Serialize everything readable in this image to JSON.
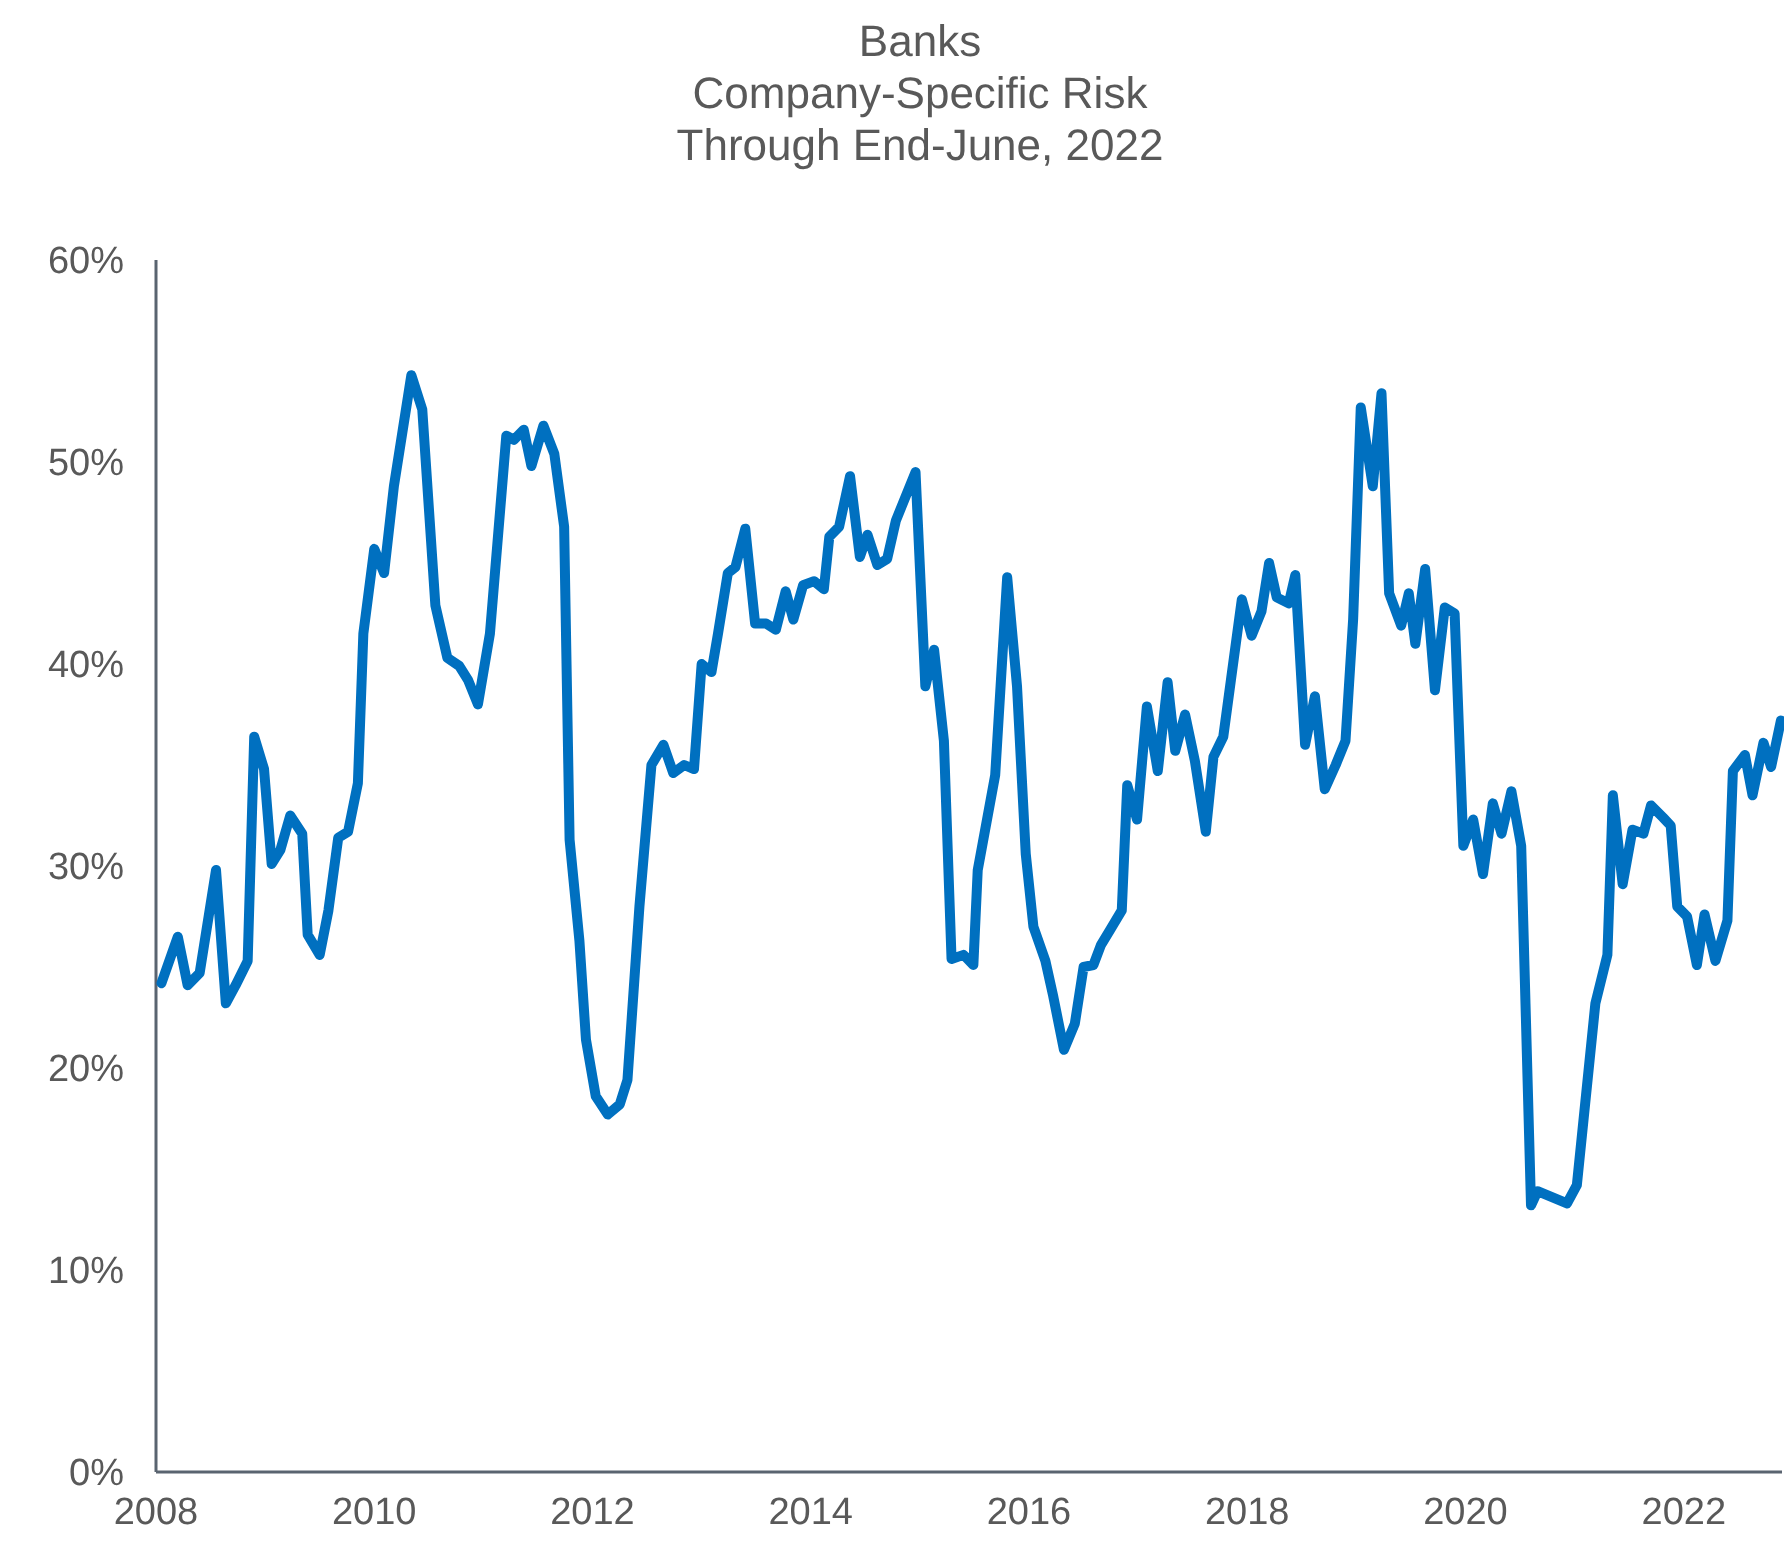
{
  "chart_data": {
    "type": "line",
    "title": "Banks\nCompany-Specific Risk\nThrough End-June, 2022",
    "xlim": [
      2008,
      2022.9
    ],
    "xticks": [
      2008,
      2010,
      2012,
      2014,
      2016,
      2018,
      2020,
      2022
    ],
    "ylim": [
      0,
      60
    ],
    "yticks": [
      {
        "value": 0,
        "label": "0%"
      },
      {
        "value": 10,
        "label": "10%"
      },
      {
        "value": 20,
        "label": "20%"
      },
      {
        "value": 30,
        "label": "30%"
      },
      {
        "value": 40,
        "label": "40%"
      },
      {
        "value": 50,
        "label": "50%"
      },
      {
        "value": 60,
        "label": "60%"
      }
    ],
    "grid": false,
    "marker": "none",
    "line_style": "solid",
    "series": [
      {
        "color": "#0070c0",
        "x": [
          2008.05,
          2008.2,
          2008.29,
          2008.4,
          2008.55,
          2008.64,
          2008.73,
          2008.84,
          2008.9,
          2008.99,
          2009.06,
          2009.14,
          2009.23,
          2009.34,
          2009.39,
          2009.5,
          2009.58,
          2009.67,
          2009.76,
          2009.85,
          2009.9,
          2010.0,
          2010.09,
          2010.18,
          2010.34,
          2010.44,
          2010.56,
          2010.67,
          2010.78,
          2010.86,
          2010.95,
          2011.06,
          2011.21,
          2011.28,
          2011.37,
          2011.44,
          2011.55,
          2011.65,
          2011.74,
          2011.79,
          2011.88,
          2011.94,
          2012.03,
          2012.14,
          2012.25,
          2012.32,
          2012.43,
          2012.54,
          2012.65,
          2012.74,
          2012.84,
          2012.93,
          2013.0,
          2013.09,
          2013.15,
          2013.24,
          2013.31,
          2013.4,
          2013.49,
          2013.59,
          2013.68,
          2013.77,
          2013.84,
          2013.93,
          2014.03,
          2014.12,
          2014.17,
          2014.26,
          2014.36,
          2014.45,
          2014.52,
          2014.61,
          2014.7,
          2014.78,
          2014.96,
          2015.05,
          2015.13,
          2015.22,
          2015.29,
          2015.4,
          2015.49,
          2015.53,
          2015.69,
          2015.8,
          2015.89,
          2015.97,
          2016.04,
          2016.15,
          2016.22,
          2016.32,
          2016.42,
          2016.5,
          2016.59,
          2016.66,
          2016.75,
          2016.85,
          2016.9,
          2016.99,
          2017.08,
          2017.18,
          2017.27,
          2017.34,
          2017.43,
          2017.52,
          2017.62,
          2017.69,
          2017.78,
          2017.85,
          2017.95,
          2018.04,
          2018.13,
          2018.2,
          2018.27,
          2018.38,
          2018.44,
          2018.53,
          2018.62,
          2018.71,
          2018.81,
          2018.9,
          2018.97,
          2019.04,
          2019.15,
          2019.23,
          2019.3,
          2019.41,
          2019.48,
          2019.54,
          2019.63,
          2019.72,
          2019.81,
          2019.9,
          2019.98,
          2020.07,
          2020.16,
          2020.25,
          2020.33,
          2020.42,
          2020.51,
          2020.6,
          2020.66,
          2020.93,
          2021.02,
          2021.19,
          2021.3,
          2021.35,
          2021.44,
          2021.53,
          2021.63,
          2021.7,
          2021.81,
          2021.88,
          2021.94,
          2022.03,
          2022.12,
          2022.19,
          2022.29,
          2022.4,
          2022.45,
          2022.56,
          2022.63,
          2022.73,
          2022.8,
          2022.89
        ],
        "values": [
          24.2,
          26.5,
          24.1,
          24.7,
          29.8,
          23.2,
          24.1,
          25.3,
          36.4,
          34.8,
          30.1,
          30.8,
          32.5,
          31.6,
          26.6,
          25.6,
          27.8,
          31.4,
          31.7,
          34.1,
          41.5,
          45.7,
          44.5,
          48.8,
          54.3,
          52.6,
          42.9,
          40.3,
          39.9,
          39.2,
          38.0,
          41.5,
          51.3,
          51.1,
          51.6,
          49.8,
          51.8,
          50.4,
          46.8,
          31.3,
          26.3,
          21.4,
          18.6,
          17.7,
          18.2,
          19.4,
          28.0,
          35.0,
          36.0,
          34.6,
          35.0,
          34.8,
          40.0,
          39.6,
          41.5,
          44.5,
          44.8,
          46.7,
          42.0,
          42.0,
          41.7,
          43.6,
          42.2,
          43.9,
          44.1,
          43.7,
          46.3,
          46.8,
          49.3,
          45.3,
          46.4,
          44.9,
          45.2,
          47.1,
          49.5,
          38.9,
          40.7,
          36.2,
          25.4,
          25.6,
          25.1,
          29.8,
          34.5,
          44.3,
          38.9,
          30.6,
          27.0,
          25.3,
          23.6,
          20.9,
          22.2,
          25.0,
          25.1,
          26.1,
          26.9,
          27.8,
          34.0,
          32.3,
          37.9,
          34.7,
          39.1,
          35.7,
          37.5,
          35.2,
          31.7,
          35.4,
          36.4,
          39.2,
          43.2,
          41.4,
          42.6,
          45.0,
          43.3,
          43.0,
          44.4,
          36.0,
          38.4,
          33.8,
          35.0,
          36.2,
          42.2,
          52.7,
          48.8,
          53.4,
          43.5,
          41.9,
          43.5,
          41.0,
          44.7,
          38.7,
          42.8,
          42.5,
          31.0,
          32.3,
          29.6,
          33.1,
          31.6,
          33.7,
          31.0,
          13.2,
          13.9,
          13.3,
          14.2,
          23.2,
          25.6,
          33.5,
          29.1,
          31.8,
          31.6,
          33.0,
          32.4,
          32.0,
          28.0,
          27.5,
          25.1,
          27.6,
          25.3,
          27.3,
          34.7,
          35.5,
          33.5,
          36.1,
          34.9,
          37.2
        ]
      }
    ]
  }
}
